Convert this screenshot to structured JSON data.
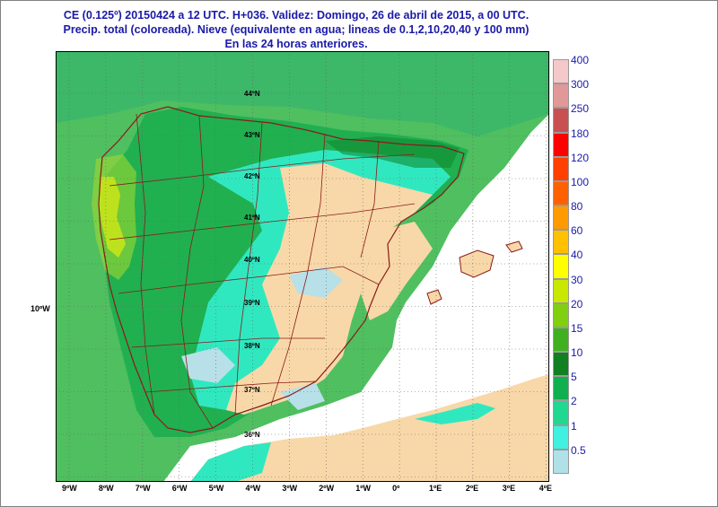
{
  "title": {
    "line1": "CE (0.125º) 20150424 a 12 UTC.  H+036. Validez: Domingo, 26 de abril de 2015,  a  00 UTC.",
    "line2": "Precip. total (coloreada). Nieve (equivalente en agua; lineas de 0.1,2,10,20,40 y 100 mm)",
    "line3": "En las 24 horas anteriores."
  },
  "map": {
    "longitude_labels": [
      "9ºW",
      "8ºW",
      "7ºW",
      "6ºW",
      "5ºW",
      "4ºW",
      "3ºW",
      "2ºW",
      "1ºW",
      "0º",
      "1ºE",
      "2ºE",
      "3ºE",
      "4ºE"
    ],
    "latitude_labels": [
      "44ºN",
      "43ºN",
      "42ºN",
      "41ºN",
      "40ºN",
      "39ºN",
      "38ºN",
      "37ºN",
      "36ºN"
    ],
    "side_label": "10ºW",
    "colors": {
      "sea_rain": "#4fbf60",
      "dry_land": "#f8d8a8",
      "light_rain": "#b8e0e8",
      "cyan_rain": "#30e8c0",
      "green_rain": "#20b050",
      "yellow_rain": "#e8f000",
      "border": "#8b1a1a",
      "white_area": "#ffffff"
    }
  },
  "legend": {
    "items": [
      {
        "label": "400",
        "color": "#f4c8c8"
      },
      {
        "label": "300",
        "color": "#e09898"
      },
      {
        "label": "250",
        "color": "#c85050"
      },
      {
        "label": "180",
        "color": "#ff0000"
      },
      {
        "label": "120",
        "color": "#ff4000"
      },
      {
        "label": "100",
        "color": "#ff6000"
      },
      {
        "label": "80",
        "color": "#ff9a00"
      },
      {
        "label": "60",
        "color": "#ffc000"
      },
      {
        "label": "40",
        "color": "#ffff00"
      },
      {
        "label": "30",
        "color": "#c8e800"
      },
      {
        "label": "20",
        "color": "#80d010"
      },
      {
        "label": "15",
        "color": "#40b020"
      },
      {
        "label": "10",
        "color": "#108020"
      },
      {
        "label": "5",
        "color": "#10b050"
      },
      {
        "label": "2",
        "color": "#20d890"
      },
      {
        "label": "1",
        "color": "#40f0e0"
      },
      {
        "label": "0.5",
        "color": "#b0e0e8"
      }
    ]
  }
}
